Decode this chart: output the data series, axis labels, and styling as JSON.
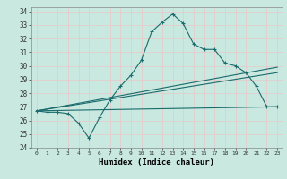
{
  "xlabel": "Humidex (Indice chaleur)",
  "xlim": [
    -0.5,
    23.5
  ],
  "ylim": [
    24,
    34.3
  ],
  "xticks": [
    0,
    1,
    2,
    3,
    4,
    5,
    6,
    7,
    8,
    9,
    10,
    11,
    12,
    13,
    14,
    15,
    16,
    17,
    18,
    19,
    20,
    21,
    22,
    23
  ],
  "yticks": [
    24,
    25,
    26,
    27,
    28,
    29,
    30,
    31,
    32,
    33,
    34
  ],
  "background_color": "#c8e8e0",
  "grid_color": "#e8c8c8",
  "line_color": "#1a6b6b",
  "line1_x": [
    0,
    1,
    2,
    3,
    4,
    5,
    6,
    7,
    8,
    9,
    10,
    11,
    12,
    13,
    14,
    15,
    16,
    17,
    18,
    19,
    20,
    21,
    22,
    23
  ],
  "line1_y": [
    26.7,
    26.6,
    26.6,
    26.5,
    25.8,
    24.7,
    26.2,
    27.5,
    28.5,
    29.3,
    30.4,
    32.5,
    33.2,
    33.8,
    33.1,
    31.6,
    31.2,
    31.2,
    30.2,
    30.0,
    29.5,
    28.5,
    27.0,
    27.0
  ],
  "line2_x": [
    0,
    23
  ],
  "line2_y": [
    26.7,
    27.0
  ],
  "line3_x": [
    0,
    23
  ],
  "line3_y": [
    26.7,
    29.5
  ],
  "line4_x": [
    0,
    23
  ],
  "line4_y": [
    26.7,
    29.9
  ]
}
